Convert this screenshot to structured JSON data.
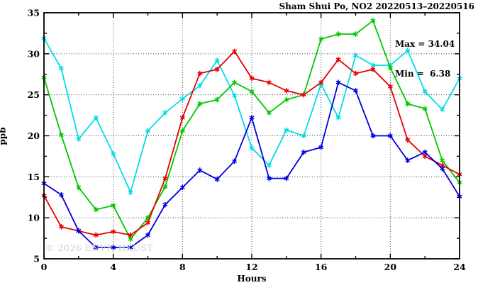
{
  "chart_data": {
    "type": "line",
    "title": "Sham Shui Po, NO2 20220513–20220516",
    "xlabel": "Hours",
    "ylabel": "ppb",
    "xlim": [
      0,
      24
    ],
    "ylim": [
      5,
      35
    ],
    "xtick_major": 4,
    "xtick_minor": 2,
    "ytick_major": 5,
    "ytick_minor": 2.5,
    "grid": "dotted",
    "legend": "none",
    "marker": "asterisk",
    "annotation": {
      "max_label": "Max = 34.04",
      "min_label": "Min =  6.38"
    },
    "watermark": "© 2026 ENVF, HKUST",
    "x": [
      0,
      1,
      2,
      3,
      4,
      5,
      6,
      7,
      8,
      9,
      10,
      11,
      12,
      13,
      14,
      15,
      16,
      17,
      18,
      19,
      20,
      21,
      22,
      23,
      24
    ],
    "series": [
      {
        "name": "series-cyan",
        "color": "#00dde8",
        "values": [
          31.9,
          28.2,
          19.6,
          22.2,
          17.8,
          13.1,
          20.6,
          22.8,
          24.5,
          26.1,
          29.2,
          24.9,
          18.5,
          16.4,
          20.7,
          20.0,
          26.3,
          22.2,
          29.8,
          28.6,
          28.6,
          30.4,
          25.4,
          23.2,
          27.0
        ]
      },
      {
        "name": "series-green",
        "color": "#00c800",
        "values": [
          27.1,
          20.1,
          13.7,
          11.0,
          11.5,
          7.4,
          10.0,
          13.8,
          20.6,
          23.9,
          24.4,
          26.5,
          25.4,
          22.8,
          24.4,
          25.0,
          31.8,
          32.4,
          32.4,
          34.04,
          28.3,
          23.9,
          23.3,
          17.0,
          14.3
        ]
      },
      {
        "name": "series-red",
        "color": "#e60000",
        "values": [
          12.7,
          8.9,
          8.4,
          7.9,
          8.3,
          7.9,
          9.4,
          14.8,
          22.2,
          27.6,
          28.1,
          30.3,
          27.0,
          26.5,
          25.5,
          25.0,
          26.5,
          29.3,
          27.6,
          28.1,
          26.0,
          19.5,
          17.5,
          16.4,
          15.3
        ]
      },
      {
        "name": "series-blue",
        "color": "#0000e0",
        "values": [
          14.2,
          12.8,
          8.4,
          6.38,
          6.38,
          6.38,
          7.9,
          11.6,
          13.7,
          15.8,
          14.7,
          16.9,
          22.2,
          14.8,
          14.8,
          18.0,
          18.6,
          26.5,
          25.5,
          20.0,
          20.0,
          17.0,
          18.0,
          16.0,
          12.6
        ]
      }
    ]
  }
}
